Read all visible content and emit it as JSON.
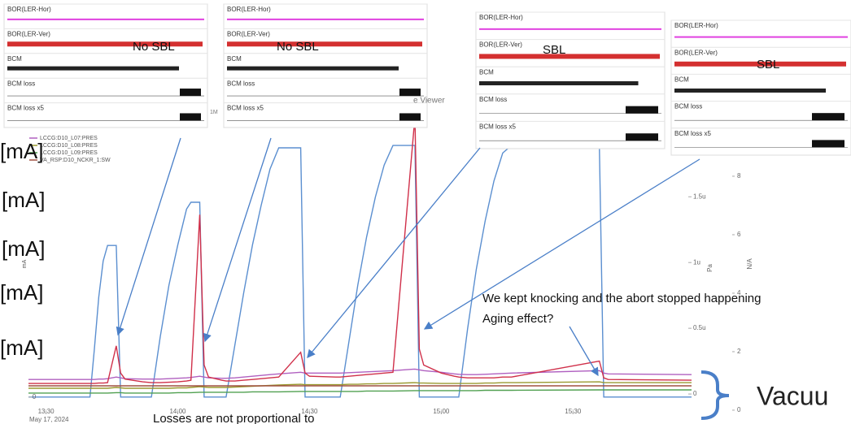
{
  "chart_data": {
    "type": "line",
    "x_date_label": "May 17, 2024",
    "y_label": "mA",
    "y2_label": "Pa",
    "y3_label": "N/A",
    "x": [
      "13:26",
      "13:40",
      "13:41",
      "13:42",
      "13:43",
      "13:44",
      "13:46",
      "13:47",
      "13:48",
      "13:52",
      "13:54",
      "13:56",
      "13:58",
      "14:00",
      "14:02",
      "14:03",
      "14:05",
      "14:06",
      "14:07",
      "14:10",
      "14:11",
      "14:13",
      "14:15",
      "14:17",
      "14:19",
      "14:21",
      "14:23",
      "14:28",
      "14:29",
      "14:30",
      "14:36",
      "14:37",
      "14:39",
      "14:41",
      "14:43",
      "14:45",
      "14:47",
      "14:49",
      "14:54",
      "14:55",
      "14:56",
      "15:00",
      "15:03",
      "15:04",
      "15:06",
      "15:08",
      "15:10",
      "15:12",
      "15:14",
      "15:16",
      "15:36",
      "15:37",
      "15:38",
      "15:57"
    ],
    "series": [
      {
        "color": "#5b8fd0",
        "values": [
          0,
          0,
          120,
          250,
          340,
          379,
          379,
          0,
          0,
          0,
          0,
          150,
          280,
          380,
          470,
          487,
          487,
          0,
          0,
          0,
          0,
          130,
          260,
          380,
          480,
          570,
          623,
          623,
          0,
          0,
          0,
          0,
          140,
          280,
          400,
          500,
          580,
          629,
          629,
          0,
          0,
          0,
          0,
          0,
          170,
          320,
          440,
          540,
          610,
          629,
          629,
          0,
          0,
          0
        ]
      },
      {
        "name": "LCCG:D10_L07:PRES",
        "color": "#b060c0",
        "values": [
          44,
          44,
          44,
          45,
          45,
          46,
          50,
          48,
          46,
          45,
          45,
          45,
          46,
          47,
          48,
          49,
          52,
          50,
          48,
          47,
          47,
          48,
          50,
          52,
          54,
          56,
          58,
          62,
          60,
          60,
          60,
          60,
          61,
          62,
          63,
          64,
          65,
          66,
          70,
          68,
          66,
          62,
          58,
          57,
          56,
          56,
          57,
          58,
          59,
          60,
          66,
          60,
          58,
          56
        ]
      },
      {
        "name": "LCCG:D10_L08:PRES",
        "color": "#9a9a30",
        "values": [
          22,
          22,
          22,
          22,
          22,
          22,
          24,
          23,
          22,
          22,
          22,
          22,
          22,
          23,
          23,
          24,
          26,
          25,
          24,
          24,
          24,
          25,
          26,
          27,
          28,
          29,
          30,
          32,
          31,
          31,
          31,
          31,
          32,
          32,
          33,
          33,
          34,
          34,
          36,
          35,
          35,
          34,
          34,
          34,
          34,
          34,
          35,
          35,
          36,
          36,
          38,
          36,
          36,
          36
        ]
      },
      {
        "name": "LCCG:D10_L09:PRES",
        "color": "#50a050",
        "values": [
          10,
          10,
          10,
          10,
          10,
          10,
          11,
          11,
          10,
          10,
          10,
          10,
          10,
          11,
          11,
          11,
          12,
          12,
          12,
          12,
          12,
          12,
          12,
          13,
          13,
          13,
          13,
          14,
          14,
          14,
          14,
          14,
          14,
          14,
          15,
          15,
          15,
          15,
          16,
          16,
          16,
          16,
          16,
          16,
          16,
          16,
          17,
          17,
          17,
          17,
          18,
          18,
          18,
          18
        ]
      },
      {
        "name": "VA_RSP:D10_NCKR_1:SW",
        "color": "#a05040",
        "values": [
          28,
          28,
          28,
          28,
          28,
          28,
          28,
          28,
          28,
          28,
          28,
          28,
          28,
          28,
          28,
          28,
          28,
          28,
          28,
          28,
          28,
          28,
          28,
          28,
          28,
          28,
          28,
          28,
          28,
          28,
          28,
          28,
          28,
          28,
          28,
          28,
          28,
          28,
          28,
          28,
          28,
          28,
          28,
          28,
          28,
          28,
          28,
          28,
          28,
          28,
          28,
          28,
          28,
          28
        ]
      },
      {
        "color": "#d0304a",
        "values": [
          34,
          34,
          34,
          35,
          35,
          36,
          128,
          60,
          45,
          38,
          36,
          36,
          37,
          38,
          40,
          42,
          456,
          80,
          50,
          42,
          40,
          40,
          42,
          44,
          46,
          48,
          50,
          112,
          60,
          52,
          50,
          50,
          52,
          54,
          56,
          58,
          60,
          62,
          700,
          120,
          80,
          60,
          52,
          50,
          48,
          48,
          48,
          48,
          50,
          50,
          90,
          48,
          44,
          42
        ]
      }
    ],
    "xlim": [
      "13:26",
      "15:57"
    ],
    "xticks": [
      "13:30",
      "14:00",
      "14:30",
      "15:00",
      "15:30"
    ],
    "ylim": [
      -43,
      688
    ],
    "yticks": [
      0
    ],
    "y2lim": [
      -1.54e-07,
      2.07e-06
    ],
    "y2ticks": [
      0,
      {
        "value": 5e-07,
        "label": "0.5u"
      },
      {
        "value": 1e-06,
        "label": "1u"
      },
      {
        "value": 1.5e-06,
        "label": "1.5u"
      }
    ],
    "y3lim": [
      -0.14,
      9.86
    ],
    "y3ticks": [
      0,
      2,
      4,
      6,
      8
    ],
    "grid": false
  },
  "insets": [
    {
      "tag": "No SBL",
      "rows": [
        "BOR(LER-Hor)",
        "BOR(LER-Ver)",
        "BCM",
        "BCM loss",
        "BCM loss x5"
      ]
    },
    {
      "tag": "No SBL",
      "rows": [
        "BOR(LER-Hor)",
        "BOR(LER-Ver)",
        "BCM",
        "BCM loss",
        "BCM loss x5"
      ]
    },
    {
      "tag": "SBL",
      "rows": [
        "BOR(LER-Hor)",
        "BOR(LER-Ver)",
        "BCM",
        "BCM loss",
        "BCM loss x5"
      ]
    },
    {
      "tag": "SBL",
      "rows": [
        "BOR(LER-Hor)",
        "BOR(LER-Ver)",
        "BCM",
        "BCM loss",
        "BCM loss x5"
      ]
    }
  ],
  "unit_labels": [
    "[mA]",
    "[mA]",
    "[mA]",
    "[mA]",
    "[mA]"
  ],
  "annotations": {
    "note": "We kept knocking and the abort stopped happening",
    "question": "Aging effect?",
    "footer": "Losses are not proportional to",
    "vacuum": "Vacuu",
    "viewer": "e Viewer",
    "scale": "1M"
  }
}
